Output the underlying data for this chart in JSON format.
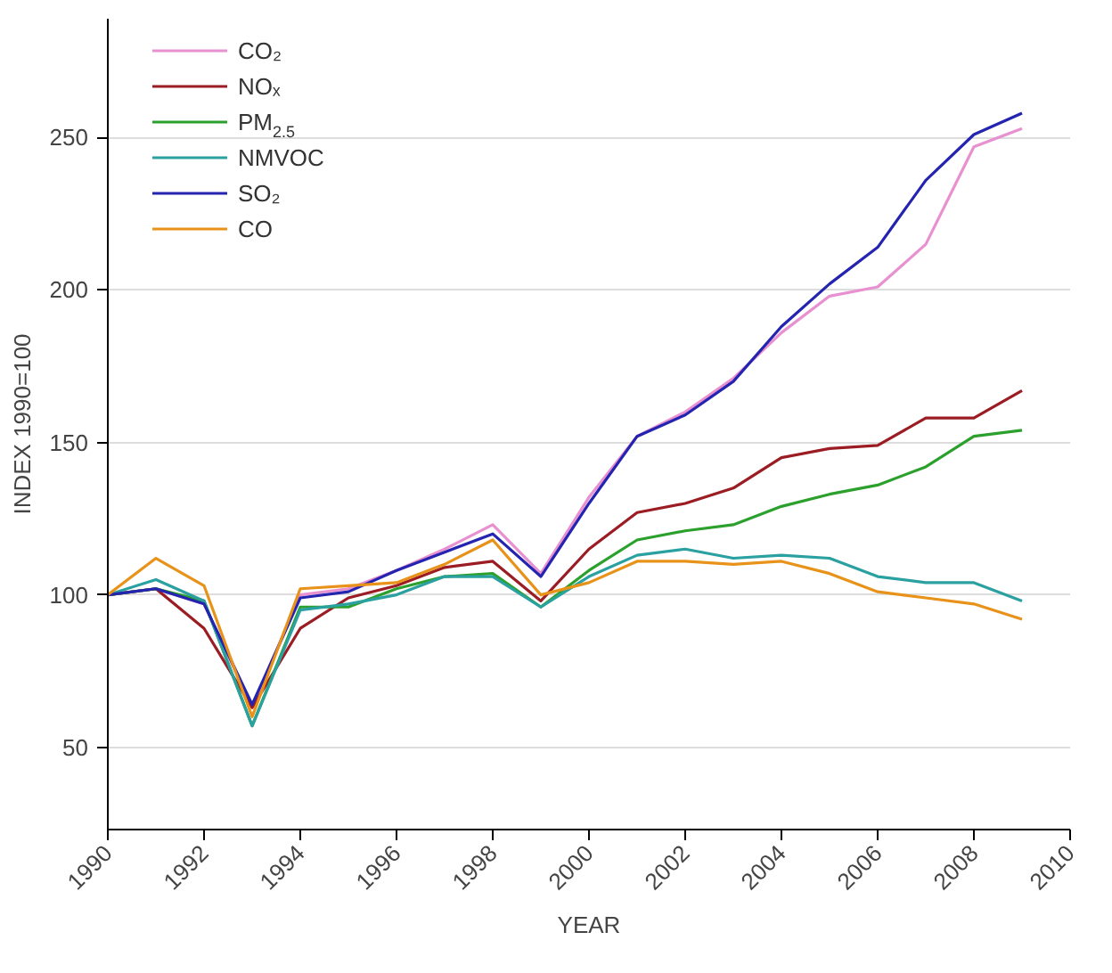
{
  "chart_data": {
    "type": "line",
    "xlabel": "YEAR",
    "ylabel": "INDEX 1990=100",
    "x": [
      1990,
      1991,
      1992,
      1993,
      1994,
      1995,
      1996,
      1997,
      1998,
      1999,
      2000,
      2001,
      2002,
      2003,
      2004,
      2005,
      2006,
      2007,
      2008,
      2009
    ],
    "series": [
      {
        "name": "CO₂",
        "color": "#e890d0",
        "values": [
          100,
          102,
          97,
          63,
          100,
          102,
          108,
          115,
          123,
          107,
          132,
          152,
          160,
          171,
          186,
          198,
          201,
          215,
          247,
          253
        ]
      },
      {
        "name": "NOₓ",
        "color": "#9b1c22",
        "values": [
          100,
          102,
          89,
          63,
          89,
          99,
          103,
          109,
          111,
          98,
          115,
          127,
          130,
          135,
          145,
          148,
          149,
          158,
          158,
          167
        ]
      },
      {
        "name": "PM$_{2.5}$",
        "color": "#2ca02c",
        "values": [
          100,
          102,
          98,
          57,
          96,
          96,
          102,
          106,
          107,
          96,
          108,
          118,
          121,
          123,
          129,
          133,
          136,
          142,
          152,
          154
        ]
      },
      {
        "name": "NMVOC",
        "color": "#2aa0a0",
        "values": [
          100,
          105,
          98,
          57,
          95,
          97,
          100,
          106,
          106,
          96,
          106,
          113,
          115,
          112,
          113,
          112,
          106,
          104,
          104,
          98
        ]
      },
      {
        "name": "SO₂",
        "color": "#2424b0",
        "values": [
          100,
          102,
          97,
          64,
          99,
          101,
          108,
          114,
          120,
          106,
          130,
          152,
          159,
          170,
          188,
          202,
          214,
          236,
          251,
          258
        ]
      },
      {
        "name": "CO",
        "color": "#e8921a",
        "values": [
          100,
          112,
          103,
          60,
          102,
          103,
          104,
          110,
          118,
          100,
          104,
          111,
          111,
          110,
          111,
          107,
          101,
          99,
          97,
          92
        ]
      }
    ],
    "xlim": [
      1990,
      2010
    ],
    "xticks": [
      1990,
      1992,
      1994,
      1996,
      1998,
      2000,
      2002,
      2004,
      2006,
      2008,
      2010
    ],
    "ylim": [
      23,
      289
    ],
    "yticks": [
      50,
      100,
      150,
      200,
      250
    ],
    "grid": "y",
    "legend": "top left",
    "marker": "none",
    "line_style": "solid"
  }
}
